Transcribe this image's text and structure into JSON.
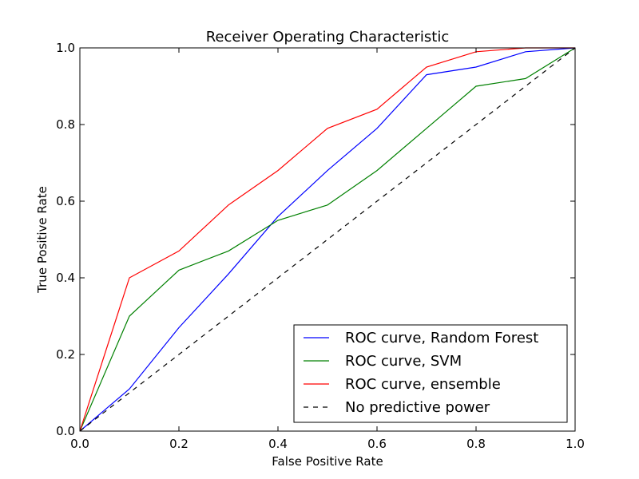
{
  "chart_data": {
    "type": "line",
    "title": "Receiver Operating Characteristic",
    "xlabel": "False Positive Rate",
    "ylabel": "True Positive Rate",
    "xlim": [
      0.0,
      1.0
    ],
    "ylim": [
      0.0,
      1.0
    ],
    "xticks": [
      "0.0",
      "0.2",
      "0.4",
      "0.6",
      "0.8",
      "1.0"
    ],
    "yticks": [
      "0.0",
      "0.2",
      "0.4",
      "0.6",
      "0.8",
      "1.0"
    ],
    "grid": false,
    "legend_position": "lower-right",
    "series": [
      {
        "name": "ROC curve, Random Forest",
        "color": "#0000ff",
        "dash": "solid",
        "x": [
          0.0,
          0.1,
          0.2,
          0.3,
          0.4,
          0.5,
          0.6,
          0.7,
          0.8,
          0.9,
          1.0
        ],
        "y": [
          0.0,
          0.11,
          0.27,
          0.41,
          0.56,
          0.68,
          0.79,
          0.93,
          0.95,
          0.99,
          1.0
        ]
      },
      {
        "name": "ROC curve, SVM",
        "color": "#008000",
        "dash": "solid",
        "x": [
          0.0,
          0.1,
          0.2,
          0.3,
          0.4,
          0.5,
          0.6,
          0.7,
          0.8,
          0.9,
          1.0
        ],
        "y": [
          0.0,
          0.3,
          0.42,
          0.47,
          0.55,
          0.59,
          0.68,
          0.79,
          0.9,
          0.92,
          1.0
        ]
      },
      {
        "name": "ROC curve, ensemble",
        "color": "#ff0000",
        "dash": "solid",
        "x": [
          0.0,
          0.1,
          0.2,
          0.3,
          0.4,
          0.5,
          0.6,
          0.7,
          0.8,
          0.9,
          1.0
        ],
        "y": [
          0.0,
          0.4,
          0.47,
          0.59,
          0.68,
          0.79,
          0.84,
          0.95,
          0.99,
          1.0,
          1.0
        ]
      },
      {
        "name": "No predictive power",
        "color": "#000000",
        "dash": "dashed",
        "x": [
          0.0,
          1.0
        ],
        "y": [
          0.0,
          1.0
        ]
      }
    ]
  }
}
